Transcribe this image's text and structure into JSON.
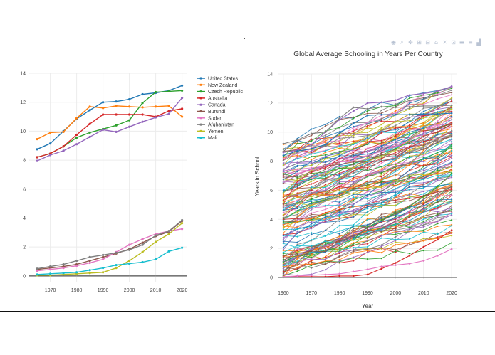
{
  "colors": {
    "palette": [
      "#1f77b4",
      "#ff7f0e",
      "#2ca02c",
      "#d62728",
      "#9467bd",
      "#8c564b",
      "#e377c2",
      "#7f7f7f",
      "#bcbd22",
      "#17becf"
    ],
    "modebar": "#b9c3d3"
  },
  "modebar": {
    "icons": [
      "camera-icon",
      "zoom-icon",
      "pan-icon",
      "zoom-in-icon",
      "zoom-out-icon",
      "home-icon",
      "autoscale-icon",
      "select-icon",
      "spike-lines-icon",
      "compare-icon",
      "plotly-logo-icon"
    ]
  },
  "chart_data": [
    {
      "type": "line",
      "title": "",
      "xlabel": "",
      "ylabel": "",
      "xlim": [
        1962,
        2022
      ],
      "ylim": [
        -0.4,
        14
      ],
      "x_ticks": [
        1970,
        1980,
        1990,
        2000,
        2010,
        2020
      ],
      "y_ticks": [
        0,
        2,
        4,
        6,
        8,
        10,
        12,
        14
      ],
      "legend_position": "top-right",
      "x": [
        1965,
        1970,
        1975,
        1980,
        1985,
        1990,
        1995,
        2000,
        2005,
        2010,
        2015,
        2020
      ],
      "series": [
        {
          "name": "United States",
          "values": [
            8.75,
            9.15,
            10.0,
            10.85,
            11.45,
            12.0,
            12.05,
            12.2,
            12.55,
            12.65,
            12.8,
            13.15
          ]
        },
        {
          "name": "New Zealand",
          "values": [
            9.45,
            9.9,
            9.95,
            10.9,
            11.7,
            11.6,
            11.75,
            11.7,
            11.65,
            11.7,
            11.75,
            11.0
          ]
        },
        {
          "name": "Czech Republic",
          "values": [
            8.2,
            8.45,
            8.95,
            9.55,
            9.9,
            10.15,
            10.4,
            10.75,
            11.95,
            12.7,
            12.75,
            12.8
          ]
        },
        {
          "name": "Australia",
          "values": [
            8.2,
            8.45,
            8.95,
            9.75,
            10.5,
            11.15,
            11.15,
            11.15,
            11.15,
            11.0,
            11.4,
            11.55
          ]
        },
        {
          "name": "Canada",
          "values": [
            7.95,
            8.35,
            8.65,
            9.1,
            9.6,
            10.1,
            9.95,
            10.3,
            10.65,
            10.95,
            11.2,
            12.3
          ]
        },
        {
          "name": "Burundi",
          "values": [
            0.45,
            0.55,
            0.65,
            0.8,
            1.05,
            1.3,
            1.55,
            1.85,
            2.3,
            2.75,
            3.05,
            3.8
          ]
        },
        {
          "name": "Sudan",
          "values": [
            0.35,
            0.45,
            0.55,
            0.7,
            0.9,
            1.15,
            1.65,
            2.15,
            2.55,
            2.9,
            3.1,
            3.25
          ]
        },
        {
          "name": "Afghanistan",
          "values": [
            0.5,
            0.65,
            0.8,
            1.05,
            1.3,
            1.45,
            1.6,
            1.8,
            2.15,
            2.8,
            3.1,
            3.85
          ]
        },
        {
          "name": "Yemen",
          "values": [
            0.05,
            0.05,
            0.1,
            0.15,
            0.2,
            0.25,
            0.55,
            1.05,
            1.65,
            2.35,
            2.9,
            3.65
          ]
        },
        {
          "name": "Mali",
          "values": [
            0.1,
            0.15,
            0.2,
            0.25,
            0.4,
            0.55,
            0.75,
            0.85,
            0.95,
            1.15,
            1.7,
            1.95
          ]
        }
      ]
    },
    {
      "type": "line",
      "title": "Global Average Schooling in Years Per Country",
      "xlabel": "Year",
      "ylabel": "Years in School",
      "xlim": [
        1958,
        2022
      ],
      "ylim": [
        -0.1,
        14
      ],
      "x_ticks": [
        1960,
        1970,
        1980,
        1990,
        2000,
        2010,
        2020
      ],
      "y_ticks": [
        0,
        2,
        4,
        6,
        8,
        10,
        12,
        14
      ],
      "x": [
        1960,
        1965,
        1970,
        1975,
        1980,
        1985,
        1990,
        1995,
        2000,
        2005,
        2010,
        2015,
        2020
      ],
      "series_count": 140,
      "series_start_range": [
        0.0,
        9.2
      ],
      "series_end_range": [
        1.8,
        13.2
      ],
      "highlighted_series": [
        {
          "name": "United States",
          "values": [
            8.6,
            8.75,
            9.15,
            10.0,
            10.85,
            11.45,
            12.0,
            12.05,
            12.2,
            12.55,
            12.65,
            12.8,
            13.15
          ]
        },
        {
          "name": "Czech Republic",
          "values": [
            9.2,
            9.45,
            9.9,
            10.0,
            10.95,
            11.7,
            11.6,
            11.75,
            11.7,
            11.75,
            11.8,
            11.8,
            11.85
          ]
        },
        {
          "name": "Canada",
          "values": [
            8.4,
            8.7,
            8.85,
            9.15,
            9.9,
            10.6,
            11.15,
            11.2,
            11.2,
            11.2,
            11.25,
            11.25,
            11.3
          ]
        },
        {
          "name": "Burundi",
          "values": [
            0.05,
            0.05,
            0.05,
            0.05,
            0.1,
            0.1,
            0.2,
            0.6,
            1.0,
            1.5,
            2.1,
            2.6,
            3.25
          ]
        },
        {
          "name": "Mali",
          "values": [
            0.05,
            0.1,
            0.15,
            0.2,
            0.25,
            0.4,
            0.55,
            0.75,
            0.85,
            0.95,
            1.15,
            1.5,
            1.95
          ]
        }
      ]
    }
  ]
}
